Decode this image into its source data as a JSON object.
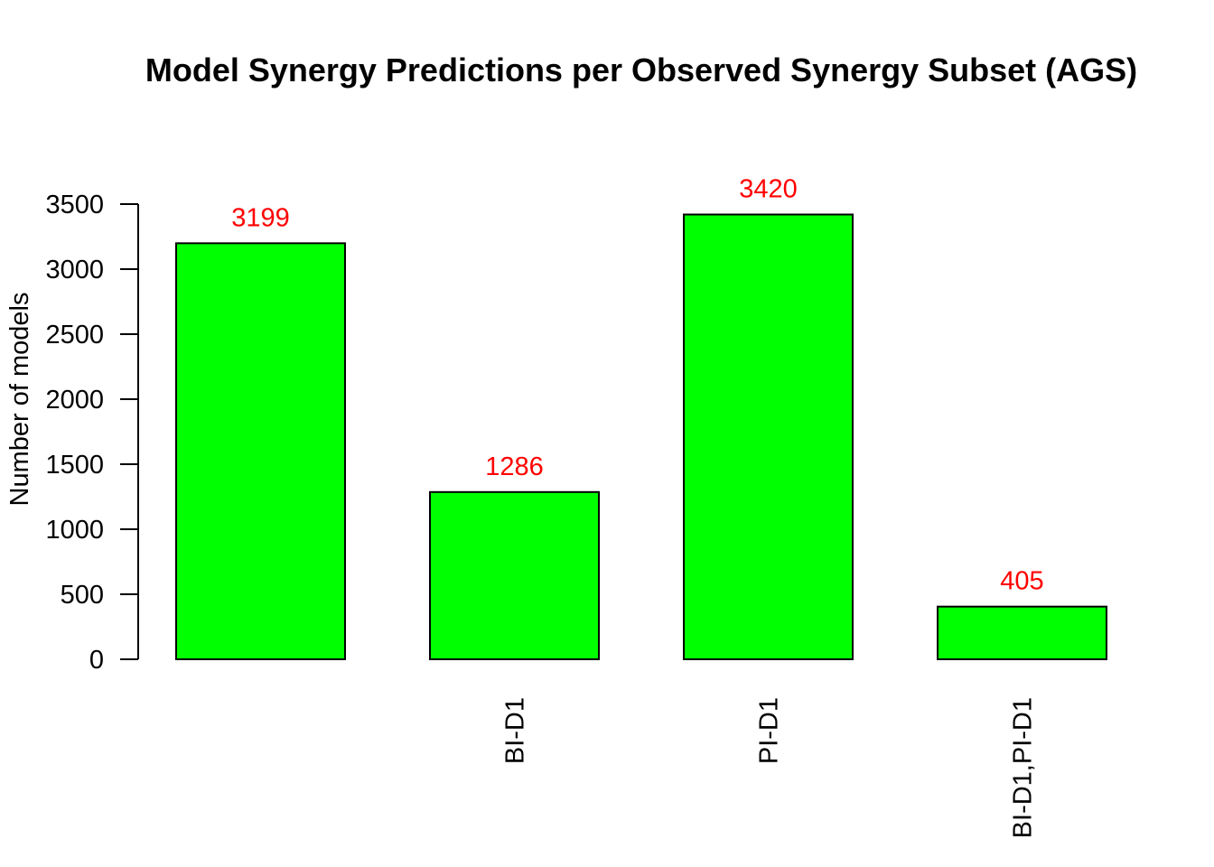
{
  "chart_data": {
    "type": "bar",
    "title": "Model Synergy Predictions per Observed Synergy Subset (AGS)",
    "xlabel": "",
    "ylabel": "Number of models",
    "categories": [
      "",
      "BI-D1",
      "PI-D1",
      "BI-D1,PI-D1"
    ],
    "values": [
      3199,
      1286,
      3420,
      405
    ],
    "data_labels": [
      "3199",
      "1286",
      "3420",
      "405"
    ],
    "yticks": [
      0,
      500,
      1000,
      1500,
      2000,
      2500,
      3000,
      3500
    ],
    "ytick_labels": [
      "0",
      "500",
      "1000",
      "1500",
      "2000",
      "2500",
      "3000",
      "3500"
    ],
    "ylim": [
      0,
      3500
    ],
    "grid": false,
    "legend": "none",
    "bar_color": "#00ff00",
    "label_color": "#ff0000"
  }
}
